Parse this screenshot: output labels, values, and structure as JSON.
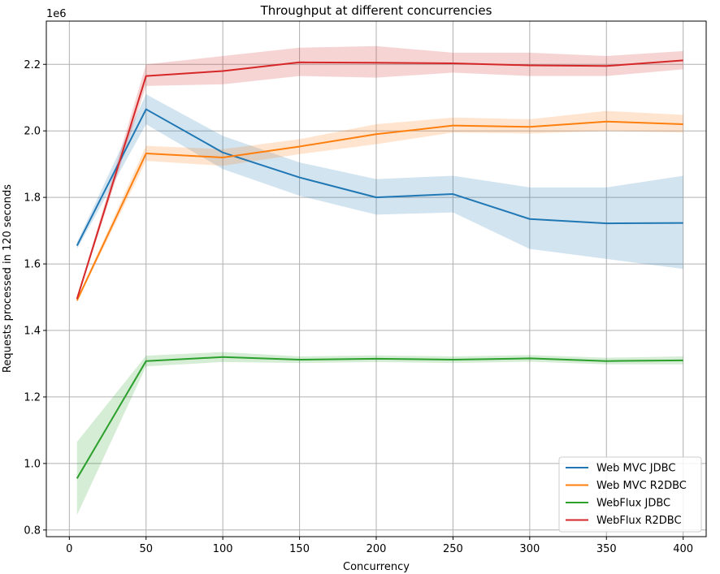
{
  "chart_data": {
    "type": "line",
    "title": "Throughput at different concurrencies",
    "xlabel": "Concurrency",
    "ylabel": "Requests processed in 120 seconds",
    "y_offset_label": "1e6",
    "xlim": [
      -15,
      415
    ],
    "ylim": [
      0.78,
      2.33
    ],
    "x_ticks": [
      0,
      50,
      100,
      150,
      200,
      250,
      300,
      350,
      400
    ],
    "y_ticks": [
      0.8,
      1.0,
      1.2,
      1.4,
      1.6,
      1.8,
      2.0,
      2.2
    ],
    "y_tick_labels": [
      "0.8",
      "1.0",
      "1.2",
      "1.4",
      "1.6",
      "1.8",
      "2.0",
      "2.2"
    ],
    "grid": true,
    "legend_position": "lower-right",
    "x": [
      5,
      50,
      100,
      150,
      200,
      250,
      300,
      350,
      400
    ],
    "series": [
      {
        "name": "Web MVC JDBC",
        "color": "#1f77b4",
        "values": [
          1.655,
          2.065,
          1.935,
          1.86,
          1.8,
          1.81,
          1.735,
          1.722,
          1.723
        ],
        "lower": [
          1.645,
          2.02,
          1.885,
          1.805,
          1.748,
          1.755,
          1.645,
          1.615,
          1.585
        ],
        "upper": [
          1.665,
          2.11,
          1.985,
          1.905,
          1.855,
          1.865,
          1.83,
          1.83,
          1.865
        ]
      },
      {
        "name": "Web MVC R2DBC",
        "color": "#ff7f0e",
        "values": [
          1.49,
          1.932,
          1.92,
          1.953,
          1.99,
          2.016,
          2.012,
          2.028,
          2.02
        ],
        "lower": [
          1.485,
          1.91,
          1.895,
          1.93,
          1.96,
          1.995,
          1.992,
          2.0,
          1.995
        ],
        "upper": [
          1.495,
          1.955,
          1.945,
          1.975,
          2.02,
          2.04,
          2.035,
          2.06,
          2.048
        ]
      },
      {
        "name": "WebFlux JDBC",
        "color": "#2ca02c",
        "values": [
          0.955,
          1.308,
          1.32,
          1.312,
          1.315,
          1.312,
          1.316,
          1.308,
          1.31
        ],
        "lower": [
          0.845,
          1.292,
          1.305,
          1.302,
          1.305,
          1.302,
          1.306,
          1.298,
          1.298
        ],
        "upper": [
          1.065,
          1.324,
          1.335,
          1.322,
          1.325,
          1.322,
          1.326,
          1.318,
          1.322
        ]
      },
      {
        "name": "WebFlux R2DBC",
        "color": "#d62728",
        "values": [
          1.495,
          2.165,
          2.18,
          2.206,
          2.205,
          2.203,
          2.197,
          2.195,
          2.212
        ],
        "lower": [
          1.49,
          2.135,
          2.14,
          2.165,
          2.16,
          2.175,
          2.165,
          2.165,
          2.185
        ],
        "upper": [
          1.5,
          2.2,
          2.225,
          2.25,
          2.255,
          2.235,
          2.235,
          2.225,
          2.24
        ]
      }
    ]
  }
}
